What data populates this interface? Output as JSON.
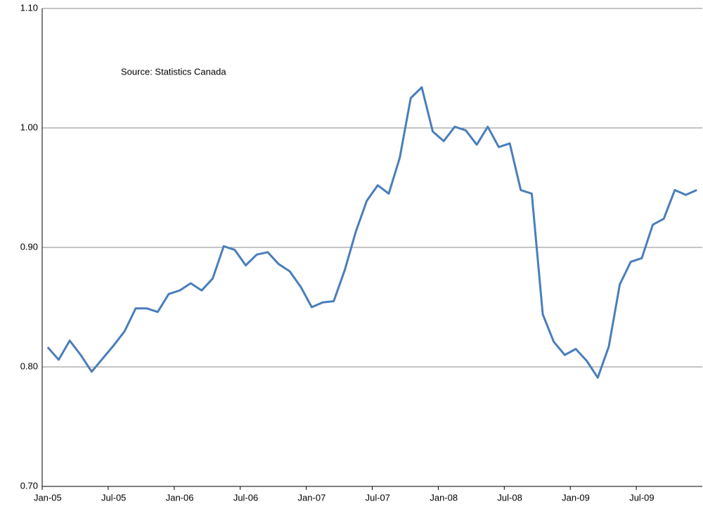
{
  "chart_data": {
    "type": "line",
    "annotation": "Source: Statistics Canada",
    "categories": [
      "Jan-05",
      null,
      null,
      null,
      null,
      null,
      "Jul-05",
      null,
      null,
      null,
      null,
      null,
      "Jan-06",
      null,
      null,
      null,
      null,
      null,
      "Jul-06",
      null,
      null,
      null,
      null,
      null,
      "Jan-07",
      null,
      null,
      null,
      null,
      null,
      "Jul-07",
      null,
      null,
      null,
      null,
      null,
      "Jan-08",
      null,
      null,
      null,
      null,
      null,
      "Jul-08",
      null,
      null,
      null,
      null,
      null,
      "Jan-09",
      null,
      null,
      null,
      null,
      null,
      "Jul-09",
      null,
      null,
      null,
      null,
      null
    ],
    "values": [
      0.8165,
      0.806,
      0.822,
      0.81,
      0.796,
      0.807,
      0.818,
      0.83,
      0.849,
      0.849,
      0.846,
      0.861,
      0.864,
      0.87,
      0.864,
      0.874,
      0.901,
      0.898,
      0.885,
      0.894,
      0.896,
      0.886,
      0.88,
      0.867,
      0.85,
      0.854,
      0.855,
      0.881,
      0.913,
      0.939,
      0.952,
      0.945,
      0.975,
      1.025,
      1.034,
      0.997,
      0.989,
      1.001,
      0.998,
      0.986,
      1.001,
      0.984,
      0.987,
      0.948,
      0.945,
      0.844,
      0.821,
      0.81,
      0.815,
      0.805,
      0.791,
      0.817,
      0.869,
      0.888,
      0.891,
      0.919,
      0.924,
      0.948,
      0.944,
      0.948
    ],
    "color": "#4a7ebb",
    "ylim": [
      0.7,
      1.1
    ],
    "yticks": [
      {
        "value": 0.7,
        "label": "0.70"
      },
      {
        "value": 0.8,
        "label": "0.80"
      },
      {
        "value": 0.9,
        "label": "0.90"
      },
      {
        "value": 1.0,
        "label": "1.00"
      },
      {
        "value": 1.1,
        "label": "1.10"
      }
    ],
    "grid": true
  }
}
